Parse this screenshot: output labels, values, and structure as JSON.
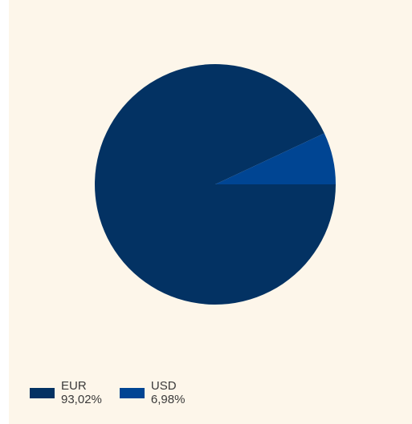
{
  "chart_data": {
    "type": "pie",
    "categories": [
      "EUR",
      "USD"
    ],
    "values": [
      93.02,
      6.98
    ],
    "value_labels": [
      "93,02%",
      "6,98%"
    ],
    "colors": [
      "#033263",
      "#004593"
    ],
    "legend": "bottom-left",
    "background": "#fdf6ea"
  }
}
